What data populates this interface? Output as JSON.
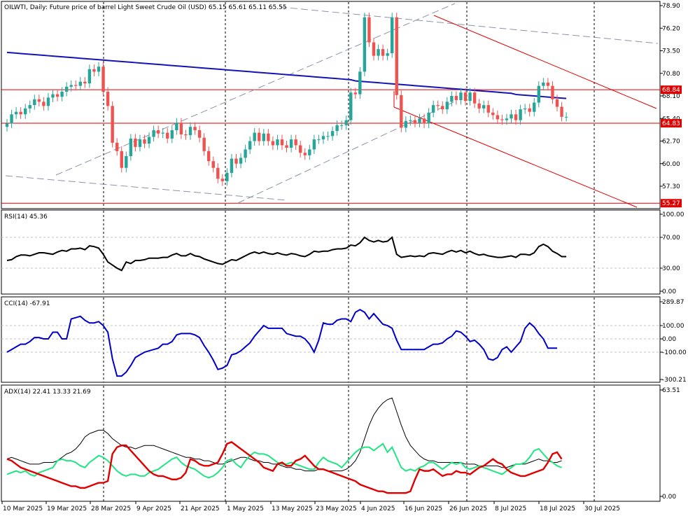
{
  "chart_data": [
    {
      "panel": "price",
      "type": "candlestick",
      "title": "OILWTI, Daily:  Future price of barrel Light Sweet Crude Oil (USD)  65.15 65.61 65.11 65.55",
      "yticks": [
        "78.90",
        "76.20",
        "73.50",
        "70.80",
        "68.10",
        "65.40",
        "62.70",
        "60.00",
        "57.30"
      ],
      "ylim": [
        54.5,
        79.5
      ],
      "price_lines": [
        {
          "label": "68.84",
          "value": 68.84,
          "color": "#e00000"
        },
        {
          "label": "64.83",
          "value": 64.83,
          "color": "#e00000"
        },
        {
          "label": "55.27",
          "value": 55.27,
          "color": "#e00000"
        }
      ],
      "colors": {
        "bull": "#26a69a",
        "bear": "#ef5350",
        "ma": "#1414b4",
        "channel": "#e00000",
        "trend": "#8a94a8"
      }
    },
    {
      "panel": "rsi",
      "type": "line",
      "title": "RSI(14) 45.36",
      "yticks": [
        "100.00",
        "70.00",
        "30.00",
        "0.00"
      ],
      "ylim": [
        0,
        100
      ],
      "color": "#000000"
    },
    {
      "panel": "cci",
      "type": "line",
      "title": "CCI(14) -67.91",
      "yticks": [
        "289.87",
        "100.00",
        "0.00",
        "-100.00",
        "-300.21"
      ],
      "ylim": [
        -300.21,
        289.87
      ],
      "color": "#0000c8"
    },
    {
      "panel": "adx",
      "type": "line",
      "title": "ADX(14) 22.41 13.33 21.69",
      "yticks": [
        "63.51",
        "0.00"
      ],
      "ylim": [
        0,
        63.51
      ],
      "series_colors": {
        "adx": "#000000",
        "plus_di": "#1ee682",
        "minus_di": "#e00000"
      }
    }
  ],
  "x_dates": [
    "10 Mar 2025",
    "19 Mar 2025",
    "28 Mar 2025",
    "9 Apr 2025",
    "21 Apr 2025",
    "1 May 2025",
    "13 May 2025",
    "23 May 2025",
    "4 Jun 2025",
    "16 Jun 2025",
    "26 Jun 2025",
    "8 Jul 2025",
    "18 Jul 2025",
    "30 Jul 2025"
  ]
}
